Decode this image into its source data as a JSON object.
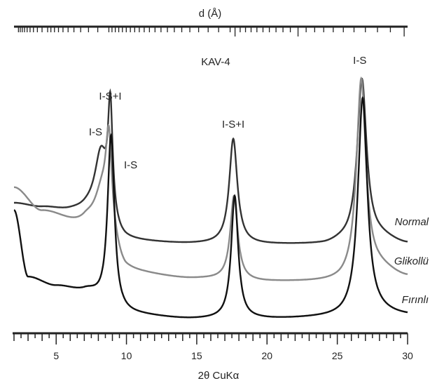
{
  "chart_data": {
    "type": "line",
    "title": "KAV-4",
    "xlabel": "2θ CuKα",
    "top_axis_label": "d (Å)",
    "xlim": [
      2,
      30
    ],
    "x_ticks": [
      "5",
      "10",
      "15",
      "20",
      "25",
      "30"
    ],
    "peak_labels": [
      {
        "text": "I-S+I",
        "x": 8.85
      },
      {
        "text": "I-S",
        "x": 8.2
      },
      {
        "text": "I-S",
        "x": 9.4
      },
      {
        "text": "I-S+I",
        "x": 17.6
      },
      {
        "text": "I-S",
        "x": 26.6
      }
    ],
    "series": [
      {
        "name": "Normal",
        "color": "#333333",
        "baseline": [
          [
            2,
            290
          ],
          [
            4,
            296
          ],
          [
            6,
            301
          ],
          [
            7,
            302
          ],
          [
            10,
            345
          ],
          [
            15,
            348
          ],
          [
            20,
            349
          ],
          [
            24,
            349
          ],
          [
            25.5,
            345
          ],
          [
            28,
            340
          ],
          [
            30,
            348
          ]
        ],
        "peaks": [
          {
            "x": 8.2,
            "h": 95,
            "w": 0.55
          },
          {
            "x": 8.85,
            "h": 160,
            "w": 0.2
          },
          {
            "x": 17.6,
            "h": 150,
            "w": 0.35
          },
          {
            "x": 26.75,
            "h": 230,
            "w": 0.4
          }
        ]
      },
      {
        "name": "Glikollü",
        "color": "#8a8a8a",
        "baseline": [
          [
            2,
            268
          ],
          [
            4,
            302
          ],
          [
            7,
            322
          ],
          [
            8.5,
            350
          ],
          [
            10,
            390
          ],
          [
            15,
            398
          ],
          [
            20,
            402
          ],
          [
            25,
            402
          ],
          [
            28,
            385
          ],
          [
            30,
            395
          ]
        ],
        "peaks": [
          {
            "x": 8.3,
            "h": 75,
            "w": 0.7
          },
          {
            "x": 8.75,
            "h": 120,
            "w": 0.25
          },
          {
            "x": 17.65,
            "h": 120,
            "w": 0.32
          },
          {
            "x": 26.7,
            "h": 280,
            "w": 0.4
          }
        ]
      },
      {
        "name": "Fırınlı",
        "color": "#111111",
        "baseline": [
          [
            2,
            300
          ],
          [
            3,
            395
          ],
          [
            5,
            408
          ],
          [
            7,
            415
          ],
          [
            9.5,
            448
          ],
          [
            15,
            455
          ],
          [
            20,
            455
          ],
          [
            25,
            453
          ],
          [
            28,
            448
          ],
          [
            30,
            450
          ]
        ],
        "peaks": [
          {
            "x": 8.9,
            "h": 250,
            "w": 0.3
          },
          {
            "x": 17.7,
            "h": 175,
            "w": 0.3
          },
          {
            "x": 26.8,
            "h": 310,
            "w": 0.4
          }
        ]
      }
    ]
  }
}
